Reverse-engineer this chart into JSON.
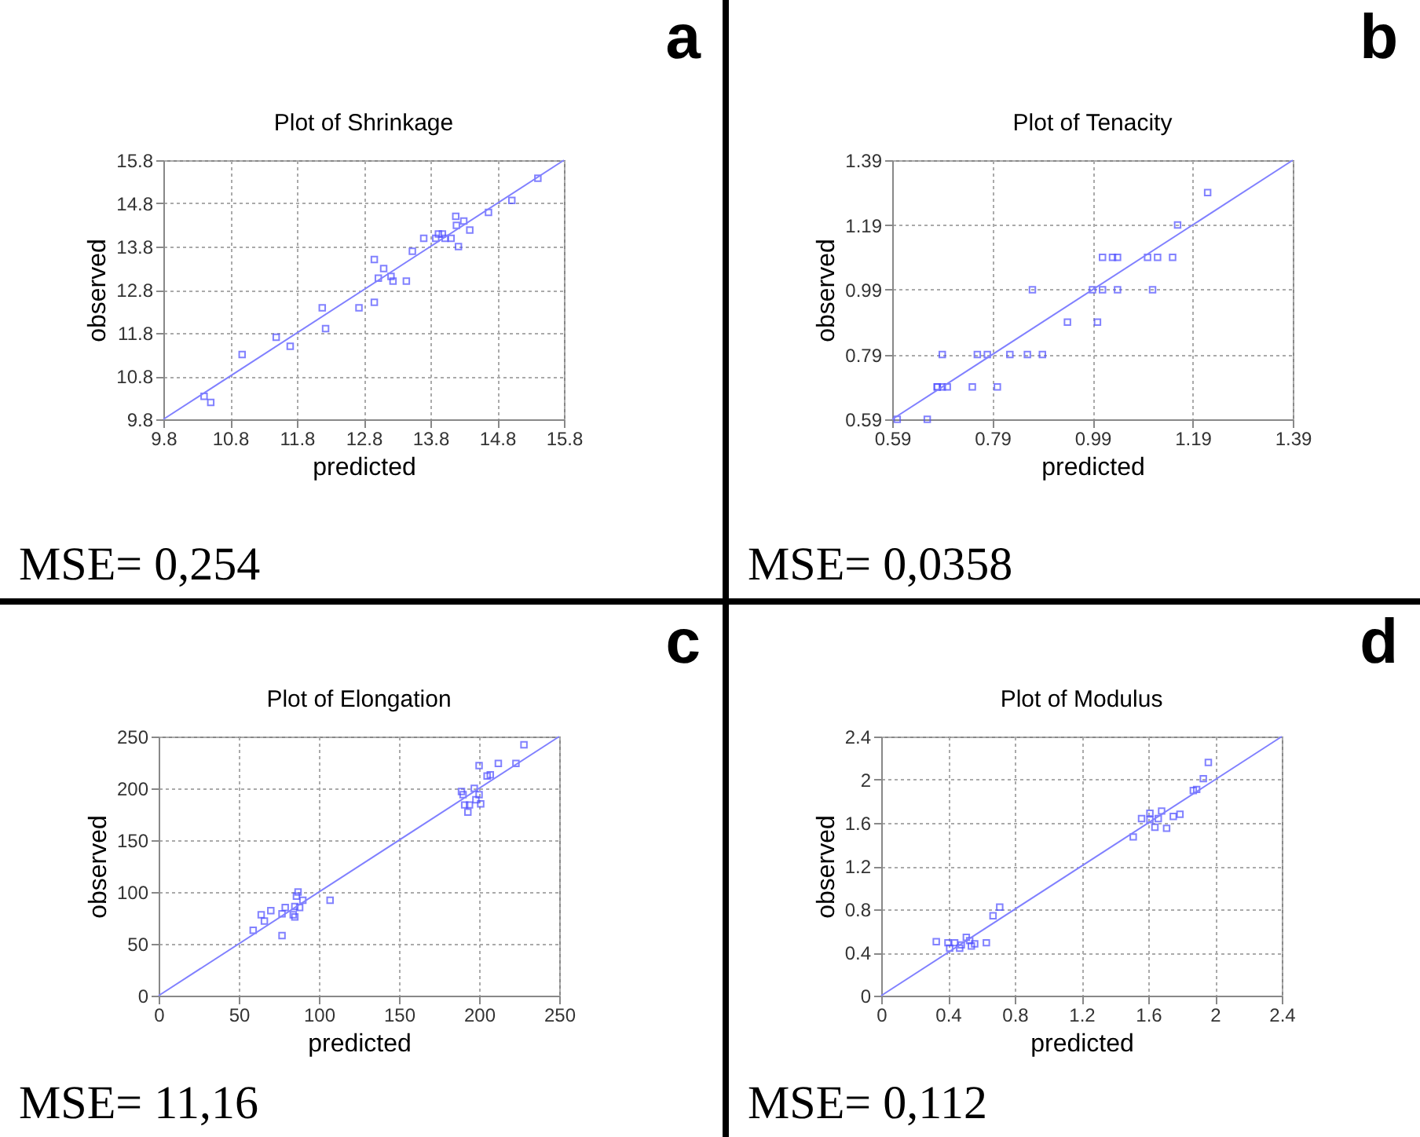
{
  "chart_data": [
    {
      "type": "scatter",
      "title": "Plot of Shrinkage",
      "xlabel": "predicted",
      "ylabel": "observed",
      "annotations": [
        "a",
        "MSE= 0,254"
      ],
      "xlim": [
        9.8,
        15.8
      ],
      "ylim": [
        9.8,
        15.8
      ],
      "xticks": [
        9.8,
        10.8,
        11.8,
        12.8,
        13.8,
        14.8,
        15.8
      ],
      "yticks": [
        9.8,
        10.8,
        11.8,
        12.8,
        13.8,
        14.8,
        15.8
      ],
      "grid": true,
      "series": [
        {
          "type": "scatter",
          "marker": "square",
          "color": "#4d4dff",
          "x": [
            10.41,
            10.51,
            10.98,
            11.49,
            11.7,
            12.18,
            12.23,
            12.73,
            12.96,
            12.96,
            13.02,
            13.1,
            13.21,
            13.24,
            13.44,
            13.53,
            13.7,
            13.88,
            13.92,
            13.98,
            14.02,
            14.11,
            14.18,
            14.19,
            14.22,
            14.3,
            14.39,
            14.67,
            15.02,
            15.41
          ],
          "values": [
            10.33,
            10.19,
            11.3,
            11.7,
            11.49,
            12.38,
            11.9,
            12.38,
            13.5,
            12.51,
            13.07,
            13.29,
            13.11,
            13.0,
            13.0,
            13.69,
            13.99,
            13.99,
            14.09,
            14.09,
            13.99,
            13.99,
            14.5,
            14.29,
            13.8,
            14.39,
            14.18,
            14.59,
            14.87,
            15.38
          ]
        },
        {
          "type": "line",
          "marker": "none",
          "color": "#8080ff",
          "x": [
            9.8,
            15.8
          ],
          "values": [
            9.8,
            15.8
          ]
        }
      ]
    },
    {
      "type": "scatter",
      "title": "Plot of Tenacity",
      "xlabel": "predicted",
      "ylabel": "observed",
      "annotations": [
        "b",
        "MSE= 0,0358"
      ],
      "xlim": [
        0.59,
        1.39
      ],
      "ylim": [
        0.59,
        1.39
      ],
      "xticks": [
        0.59,
        0.79,
        0.99,
        1.19,
        1.39
      ],
      "yticks": [
        0.59,
        0.79,
        0.99,
        1.19,
        1.39
      ],
      "grid": true,
      "series": [
        {
          "type": "scatter",
          "marker": "square",
          "color": "#4d4dff",
          "x": [
            0.6,
            0.66,
            0.69,
            0.68,
            0.68,
            0.69,
            0.7,
            0.75,
            0.76,
            0.78,
            0.8,
            0.825,
            0.86,
            0.89,
            0.87,
            0.94,
            0.99,
            1.0,
            1.01,
            1.01,
            1.03,
            1.04,
            1.04,
            1.1,
            1.11,
            1.12,
            1.15,
            1.16,
            1.22
          ],
          "values": [
            0.59,
            0.59,
            0.79,
            0.69,
            0.69,
            0.69,
            0.69,
            0.69,
            0.79,
            0.79,
            0.69,
            0.79,
            0.79,
            0.79,
            0.99,
            0.89,
            0.99,
            0.89,
            0.99,
            1.09,
            1.09,
            1.09,
            0.99,
            1.09,
            0.99,
            1.09,
            1.09,
            1.19,
            1.29
          ]
        },
        {
          "type": "line",
          "marker": "none",
          "color": "#8080ff",
          "x": [
            0.59,
            1.39
          ],
          "values": [
            0.59,
            1.39
          ]
        }
      ]
    },
    {
      "type": "scatter",
      "title": "Plot of Elongation",
      "xlabel": "predicted",
      "ylabel": "observed",
      "annotations": [
        "c",
        "MSE= 11,16"
      ],
      "xlim": [
        0,
        250
      ],
      "ylim": [
        0,
        250
      ],
      "xticks": [
        0,
        50,
        100,
        150,
        200,
        250
      ],
      "yticks": [
        0,
        50,
        100,
        150,
        200,
        250
      ],
      "grid": true,
      "series": [
        {
          "type": "scatter",
          "marker": "square",
          "color": "#4d4dff",
          "x": [
            59,
            64,
            66,
            70,
            77,
            77,
            79,
            84,
            85,
            85,
            86,
            87,
            88,
            90,
            107,
            189,
            190,
            191,
            193,
            194,
            197,
            198,
            200,
            200,
            201,
            205,
            207,
            212,
            223,
            228
          ],
          "values": [
            63,
            78,
            72,
            82,
            58,
            79,
            85,
            78,
            76,
            86,
            96,
            100,
            85,
            92,
            92,
            197,
            194,
            184,
            177,
            184,
            200,
            189,
            222,
            194,
            185,
            212,
            213,
            224,
            224,
            242
          ]
        },
        {
          "type": "line",
          "marker": "none",
          "color": "#8080ff",
          "x": [
            0,
            250
          ],
          "values": [
            0,
            250
          ]
        }
      ]
    },
    {
      "type": "scatter",
      "title": "Plot of Modulus",
      "xlabel": "predicted",
      "ylabel": "observed",
      "annotations": [
        "d",
        "MSE= 0,112"
      ],
      "xlim": [
        0,
        2.4
      ],
      "ylim": [
        0,
        2.4
      ],
      "xticks": [
        0,
        0.4,
        0.8,
        1.2,
        1.6,
        2,
        2.4
      ],
      "yticks": [
        0,
        0.4,
        0.8,
        1.2,
        1.6,
        2,
        2.4
      ],
      "grid": true,
      "series": [
        {
          "type": "scatter",
          "marker": "square",
          "color": "#4d4dff",
          "x": [
            0.33,
            0.4,
            0.41,
            0.44,
            0.47,
            0.48,
            0.51,
            0.53,
            0.54,
            0.56,
            0.63,
            0.67,
            0.71,
            1.51,
            1.56,
            1.61,
            1.61,
            1.64,
            1.66,
            1.68,
            1.71,
            1.75,
            1.79,
            1.87,
            1.89,
            1.93,
            1.96
          ],
          "values": [
            0.5,
            0.49,
            0.44,
            0.49,
            0.44,
            0.47,
            0.54,
            0.51,
            0.46,
            0.48,
            0.49,
            0.74,
            0.82,
            1.47,
            1.64,
            1.69,
            1.63,
            1.56,
            1.64,
            1.71,
            1.55,
            1.66,
            1.68,
            1.9,
            1.91,
            2.01,
            2.16
          ]
        },
        {
          "type": "line",
          "marker": "none",
          "color": "#8080ff",
          "x": [
            0,
            2.4
          ],
          "values": [
            0,
            2.4
          ]
        }
      ]
    }
  ]
}
